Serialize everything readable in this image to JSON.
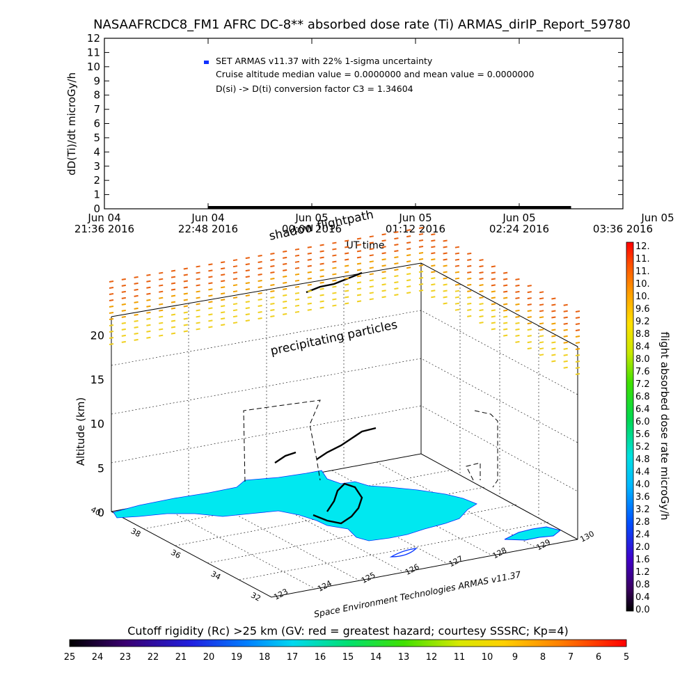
{
  "chart_data": [
    {
      "type": "line",
      "title": "NASAAFRCDC8_FM1 AFRC DC-8** absorbed dose rate (Ti) ARMAS_dirIP_Report_59780",
      "ylabel": "dD(Ti)/dt microGy/h",
      "xlabel": "UT time",
      "ylim": [
        0,
        12
      ],
      "yticks": [
        "0",
        "1",
        "2",
        "3",
        "4",
        "5",
        "6",
        "7",
        "8",
        "9",
        "10",
        "11",
        "12"
      ],
      "xticks": [
        {
          "line1": "Jun 04",
          "line2": "21:36 2016"
        },
        {
          "line1": "Jun 04",
          "line2": "22:48 2016"
        },
        {
          "line1": "Jun 05",
          "line2": "00:00 2016"
        },
        {
          "line1": "Jun 05",
          "line2": "01:12 2016"
        },
        {
          "line1": "Jun 05",
          "line2": "02:24 2016"
        },
        {
          "line1": "Jun 05",
          "line2": "03:36 2016"
        }
      ],
      "legend": [
        "SET ARMAS v11.37 with 22% 1-sigma uncertainty",
        "Cruise altitude median value = 0.0000000 and mean value = 0.0000000",
        "D(si) -> D(ti) conversion factor C3 = 1.34604"
      ],
      "legend_marker_color": "#1030ff",
      "series": [
        {
          "x": [
            "2016-06-04 22:48",
            "2016-06-05 03:00"
          ],
          "y": [
            0,
            0
          ]
        }
      ]
    },
    {
      "type": "scatter",
      "zlabel": "Altitude (km)",
      "zlim": [
        0,
        22
      ],
      "zticks": [
        "0",
        "5",
        "10",
        "15",
        "20"
      ],
      "lat_ticks": [
        "40",
        "38",
        "36",
        "34",
        "32"
      ],
      "lon_ticks": [
        "123",
        "124",
        "125",
        "126",
        "127",
        "128",
        "129",
        "130"
      ],
      "annotations": [
        "shadow flightpath",
        "precipitating particles"
      ],
      "credit": "Space Environment Technologies ARMAS v11.37",
      "land_color": "#00e8f0",
      "coast_color": "#0030ff"
    }
  ],
  "colorbar_right": {
    "label": "flight absorbed dose rate microGy/h",
    "ticks": [
      "12.",
      "11.",
      "11.",
      "10.",
      "10.",
      "9.6",
      "9.2",
      "8.8",
      "8.4",
      "8.0",
      "7.6",
      "7.2",
      "6.8",
      "6.4",
      "6.0",
      "5.6",
      "5.2",
      "4.8",
      "4.4",
      "4.0",
      "3.6",
      "3.2",
      "2.8",
      "2.4",
      "2.0",
      "1.6",
      "1.2",
      "0.8",
      "0.4",
      "0.0"
    ]
  },
  "colorbar_bottom": {
    "label": "Cutoff rigidity (Rc) >25 km (GV: red = greatest hazard; courtesy SSSRC; Kp=4)",
    "ticks": [
      "25",
      "24",
      "23",
      "22",
      "21",
      "20",
      "19",
      "18",
      "17",
      "16",
      "15",
      "14",
      "13",
      "12",
      "11",
      "10",
      "9",
      "8",
      "7",
      "6",
      "5"
    ]
  }
}
